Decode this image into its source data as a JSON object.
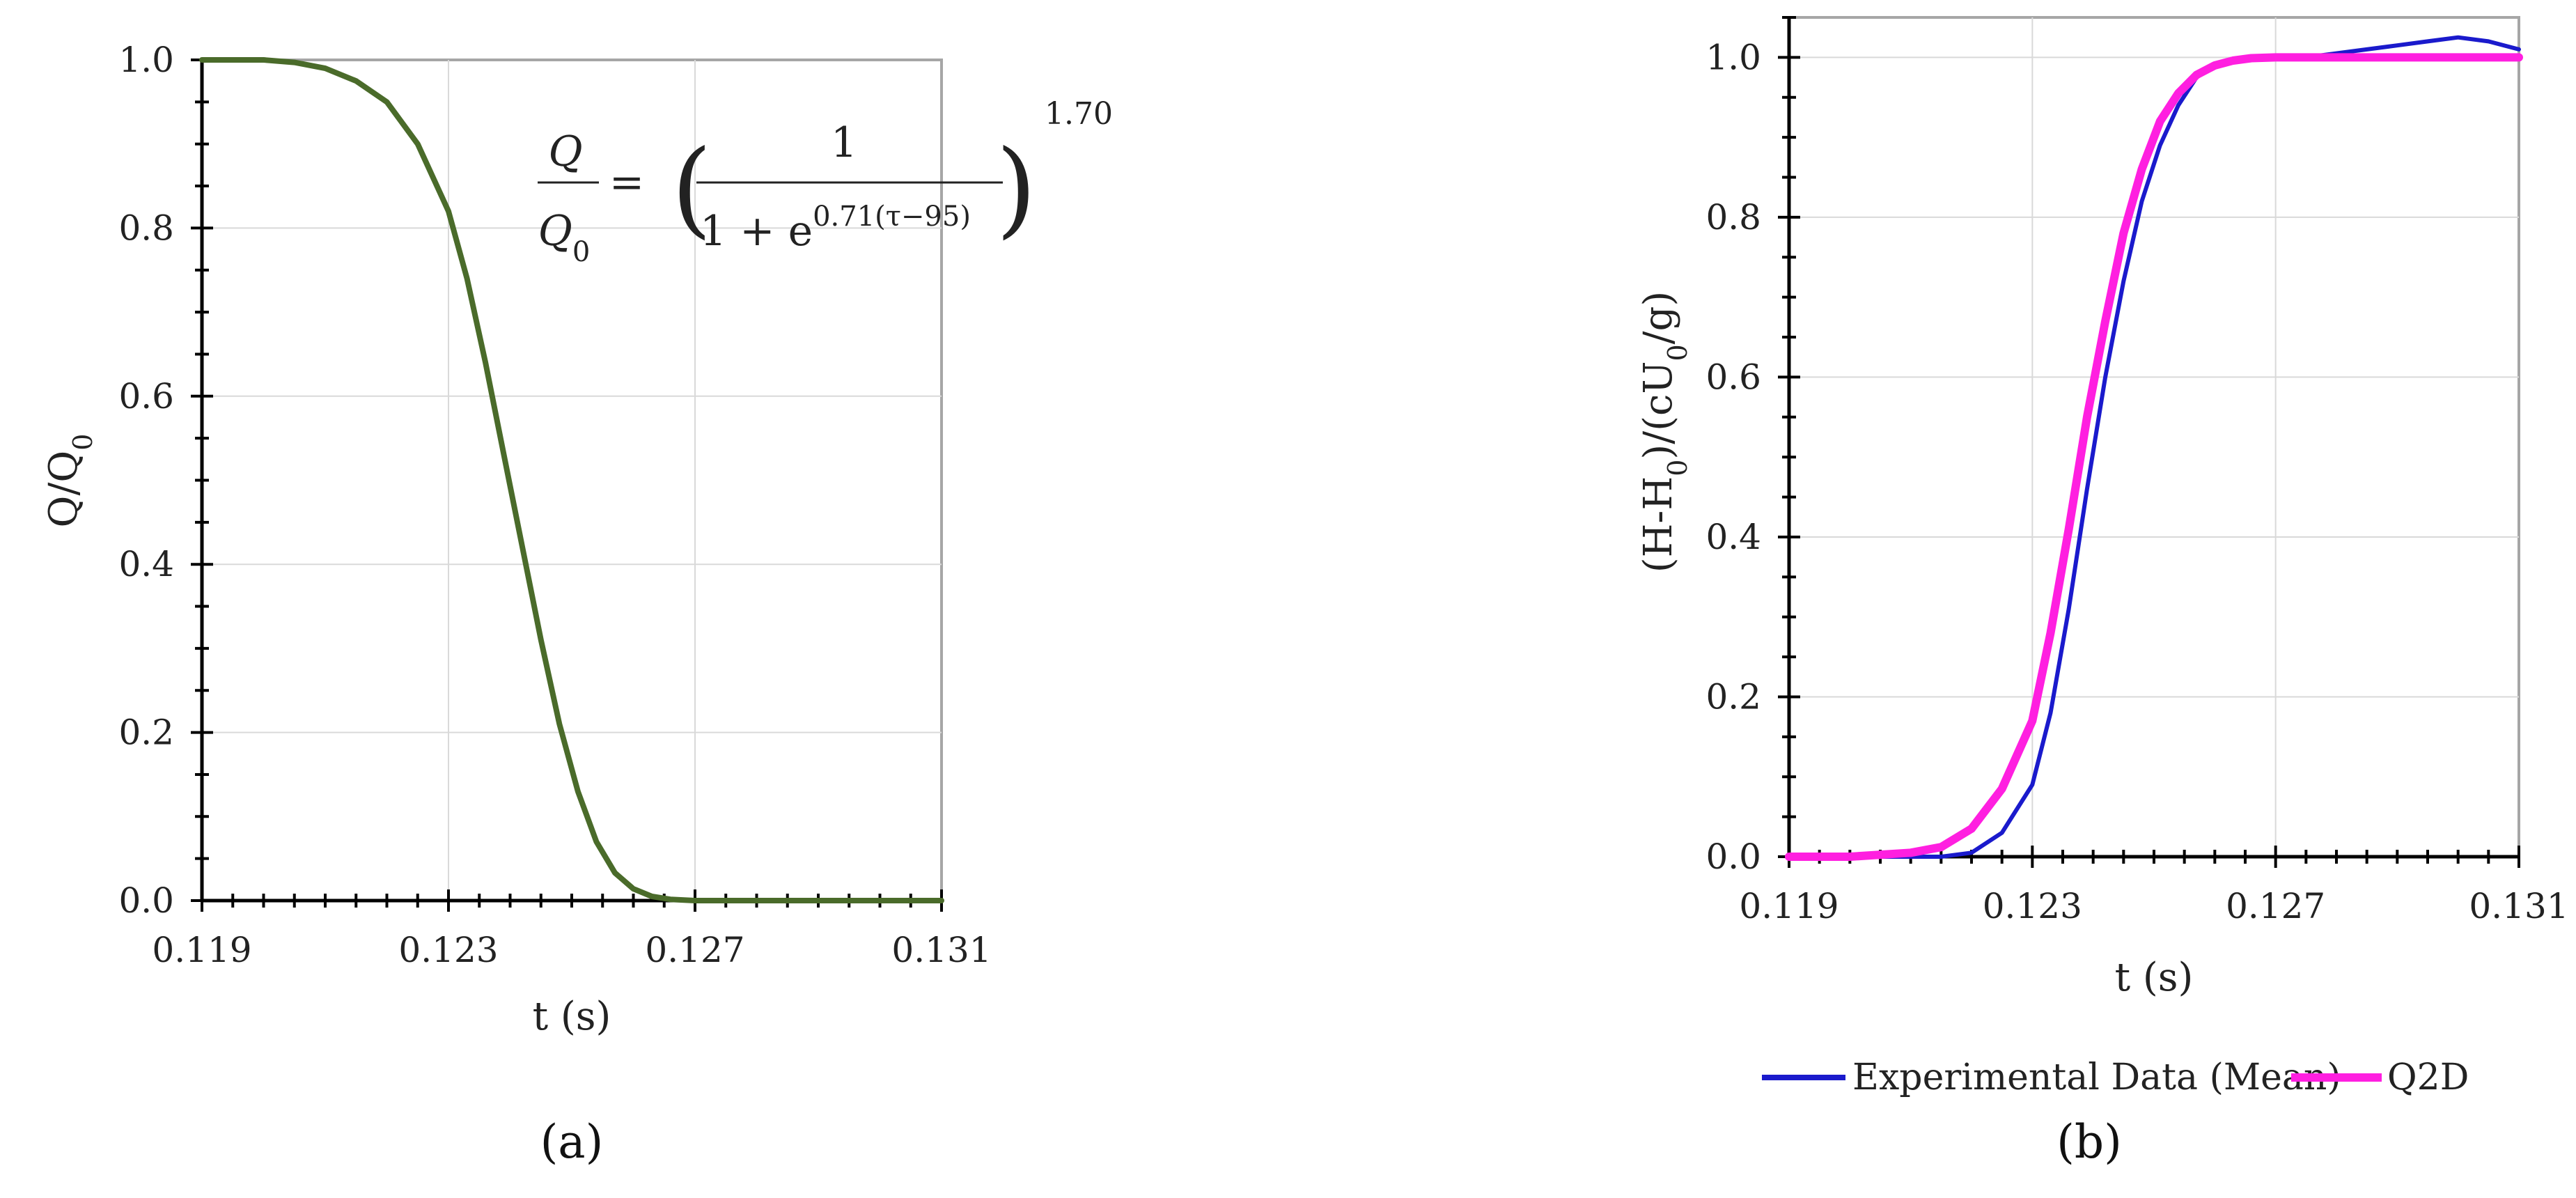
{
  "chart_data": [
    {
      "type": "line",
      "panel_label": "(a)",
      "xlabel": "t (s)",
      "ylabel": "Q/Q",
      "ylabel_sub": "0",
      "xlim": [
        0.119,
        0.131
      ],
      "ylim": [
        0,
        1
      ],
      "x_ticks": [
        "0.119",
        "0.123",
        "0.127",
        "0.131"
      ],
      "y_ticks": [
        "0.0",
        "0.2",
        "0.4",
        "0.6",
        "0.8",
        "1.0"
      ],
      "grid": true,
      "formula": {
        "lhs_num": "Q",
        "lhs_den": "Q",
        "lhs_den_sub": "0",
        "eq": "=",
        "frac_num": "1",
        "frac_den": "1 + e",
        "exponent_inner": "0.71(τ−95)",
        "exponent_outer": "1.70"
      },
      "series": [
        {
          "color": "#4a6b2a",
          "x": [
            0.119,
            0.12,
            0.1205,
            0.121,
            0.1215,
            0.122,
            0.1225,
            0.123,
            0.1233,
            0.1236,
            0.1239,
            0.1242,
            0.1245,
            0.1248,
            0.1251,
            0.1254,
            0.1257,
            0.126,
            0.1263,
            0.1266,
            0.127,
            0.128,
            0.131
          ],
          "y": [
            1.0,
            1.0,
            0.997,
            0.99,
            0.975,
            0.95,
            0.9,
            0.82,
            0.74,
            0.64,
            0.53,
            0.42,
            0.31,
            0.21,
            0.13,
            0.07,
            0.033,
            0.014,
            0.005,
            0.0015,
            0.0,
            0.0,
            0.0
          ]
        }
      ]
    },
    {
      "type": "line",
      "panel_label": "(b)",
      "xlabel": "t (s)",
      "ylabel": "(H-H",
      "ylabel_sub1": "0",
      "ylabel_mid": ")/(cU",
      "ylabel_sub2": "0",
      "ylabel_end": "/g)",
      "xlim": [
        0.119,
        0.131
      ],
      "ylim": [
        0,
        1.05
      ],
      "x_ticks": [
        "0.119",
        "0.123",
        "0.127",
        "0.131"
      ],
      "y_ticks": [
        "0.0",
        "0.2",
        "0.4",
        "0.6",
        "0.8",
        "1.0"
      ],
      "grid": true,
      "legend_position": "bottom",
      "series": [
        {
          "name": "Experimental Data (Mean)",
          "color": "#1a1acc",
          "x": [
            0.119,
            0.12,
            0.1215,
            0.122,
            0.1225,
            0.123,
            0.1233,
            0.1236,
            0.1239,
            0.1242,
            0.1245,
            0.1248,
            0.1251,
            0.1254,
            0.1257,
            0.126,
            0.1263,
            0.1266,
            0.127,
            0.1275,
            0.128,
            0.1285,
            0.129,
            0.1295,
            0.13,
            0.1305,
            0.131
          ],
          "y": [
            0.0,
            0.0,
            0.0,
            0.005,
            0.03,
            0.09,
            0.18,
            0.31,
            0.46,
            0.6,
            0.72,
            0.82,
            0.89,
            0.94,
            0.975,
            0.99,
            0.995,
            0.998,
            1.0,
            1.0,
            1.005,
            1.01,
            1.015,
            1.02,
            1.025,
            1.02,
            1.01
          ]
        },
        {
          "name": "Q2D",
          "color": "#ff1fe0",
          "x": [
            0.119,
            0.12,
            0.121,
            0.1215,
            0.122,
            0.1225,
            0.123,
            0.1233,
            0.1236,
            0.1239,
            0.1242,
            0.1245,
            0.1248,
            0.1251,
            0.1254,
            0.1257,
            0.126,
            0.1263,
            0.1266,
            0.127,
            0.128,
            0.131
          ],
          "y": [
            0.0,
            0.0,
            0.005,
            0.012,
            0.035,
            0.085,
            0.17,
            0.28,
            0.41,
            0.55,
            0.67,
            0.78,
            0.86,
            0.92,
            0.955,
            0.978,
            0.99,
            0.996,
            0.999,
            1.0,
            1.0,
            1.0
          ]
        }
      ]
    }
  ]
}
